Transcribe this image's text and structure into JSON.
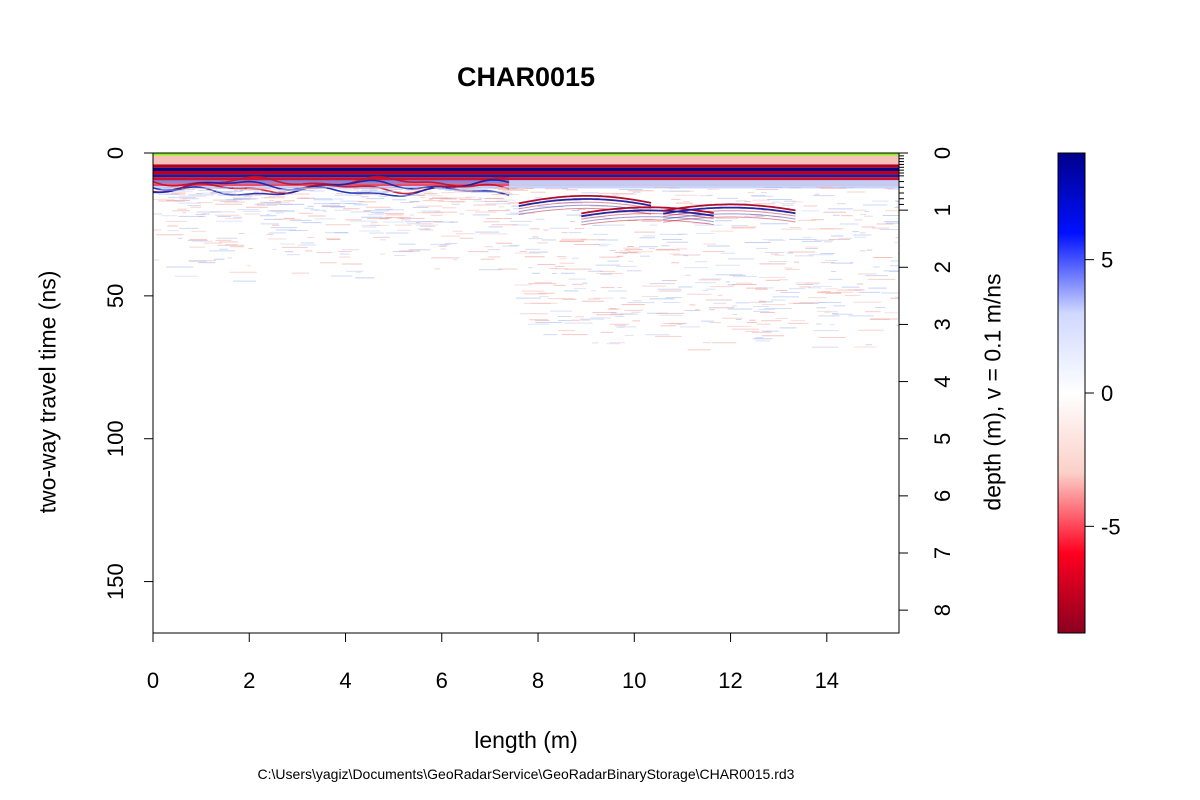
{
  "chart_data": {
    "type": "heatmap",
    "title": "CHAR0015",
    "xlabel": "length (m)",
    "ylabel_left": "two-way travel time (ns)",
    "ylabel_right": "depth (m),   v = 0.1 m/ns",
    "xlim": [
      0,
      15.5
    ],
    "ylim_time": [
      0,
      168
    ],
    "ylim_depth": [
      0,
      8.4
    ],
    "x_ticks": [
      0,
      2,
      4,
      6,
      8,
      10,
      12,
      14
    ],
    "y_ticks_time": [
      0,
      50,
      100,
      150
    ],
    "y_ticks_depth": [
      0,
      1,
      2,
      3,
      4,
      5,
      6,
      7,
      8
    ],
    "colorbar": {
      "range": [
        -9.0,
        9.0
      ],
      "ticks": [
        -5,
        0,
        5
      ],
      "colors": [
        "#8b0020",
        "#ff0020",
        "#fbd0c8",
        "#ffffff",
        "#cfd8ff",
        "#0010ff",
        "#00008b"
      ]
    },
    "direct_wave_ns": [
      0,
      12
    ],
    "hyperbolas": [
      {
        "apex_x": 9.0,
        "apex_t": 15
      },
      {
        "apex_x": 10.3,
        "apex_t": 19
      },
      {
        "apex_x": 12.0,
        "apex_t": 18
      }
    ],
    "ground_line_color": "#7cfc00"
  },
  "footer_path": "C:\\Users\\yagiz\\Documents\\GeoRadarService\\GeoRadarBinaryStorage\\CHAR0015.rd3"
}
